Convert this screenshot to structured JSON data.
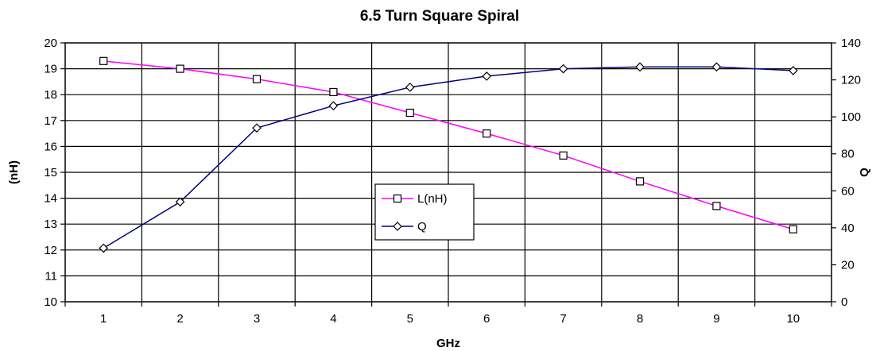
{
  "chart_data": {
    "type": "line",
    "title": "6.5 Turn Square Spiral",
    "xlabel": "GHz",
    "ylabel": "(nH)",
    "y2label": "Q",
    "x": [
      1,
      2,
      3,
      4,
      5,
      6,
      7,
      8,
      9,
      10
    ],
    "xticks": [
      "1",
      "2",
      "3",
      "4",
      "5",
      "6",
      "7",
      "8",
      "9",
      "10"
    ],
    "ylim": [
      10,
      20
    ],
    "yticks": [
      "10",
      "11",
      "12",
      "13",
      "14",
      "15",
      "16",
      "17",
      "18",
      "19",
      "20"
    ],
    "y2lim": [
      0,
      140
    ],
    "y2ticks": [
      "0",
      "20",
      "40",
      "60",
      "80",
      "100",
      "120",
      "140"
    ],
    "grid": true,
    "legend_position": "center",
    "series": [
      {
        "name": "L(nH)",
        "axis": "left",
        "marker": "square",
        "color": "#ff00ff",
        "values": [
          19.3,
          19.0,
          18.6,
          18.1,
          17.3,
          16.5,
          15.65,
          14.65,
          13.7,
          12.8
        ]
      },
      {
        "name": "Q",
        "axis": "right",
        "marker": "diamond",
        "color": "#000080",
        "values": [
          29,
          54,
          94,
          106,
          116,
          122,
          126,
          127,
          127,
          125
        ]
      }
    ]
  }
}
